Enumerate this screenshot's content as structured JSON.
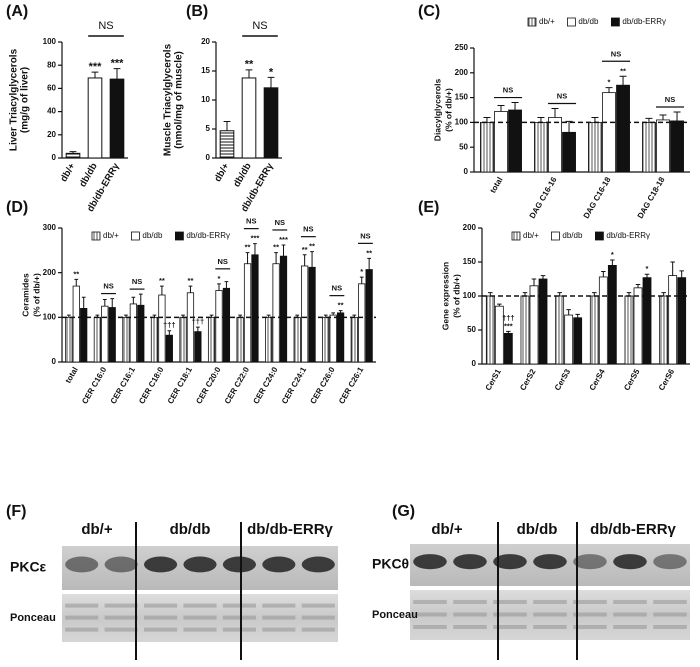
{
  "chart_data": [
    {
      "type": "bar",
      "panel": "(A)",
      "y_label": [
        "Liver Triacylglycerols",
        "(mg/g of liver)"
      ],
      "categories": [
        "db/+",
        "db/db",
        "db/db-ERRγ"
      ],
      "values": [
        4,
        69,
        68
      ],
      "errors": [
        1.5,
        5,
        9
      ],
      "annotations": [
        null,
        "***",
        "***"
      ],
      "bar_fills": [
        "hstripe",
        "white",
        "black"
      ],
      "comparison_label": "NS",
      "ylim": [
        0,
        100
      ],
      "yticks": [
        0,
        20,
        40,
        60,
        80,
        100
      ]
    },
    {
      "type": "bar",
      "panel": "(B)",
      "y_label": [
        "Muscle Triacylglycerols",
        "(nmol/mg of muscle)"
      ],
      "categories": [
        "db/+",
        "db/db",
        "db/db-ERRγ"
      ],
      "values": [
        4.7,
        13.8,
        12.1
      ],
      "errors": [
        1.6,
        1.4,
        1.8
      ],
      "annotations": [
        null,
        "**",
        "*"
      ],
      "bar_fills": [
        "hstripe",
        "white",
        "black"
      ],
      "comparison_label": "NS",
      "ylim": [
        0,
        20
      ],
      "yticks": [
        0,
        5,
        10,
        15,
        20
      ]
    },
    {
      "type": "grouped_bar",
      "panel": "(C)",
      "y_label": [
        "Diacylglycerols",
        "(% of db/+)"
      ],
      "categories": [
        "total",
        "DAG C16-16",
        "DAG C16-18",
        "DAG C18-18"
      ],
      "series": [
        {
          "name": "db/+",
          "fill": "vstripe",
          "values": [
            100,
            100,
            100,
            100
          ],
          "errors": [
            10,
            10,
            10,
            8
          ],
          "annotations": [
            null,
            null,
            null,
            null
          ]
        },
        {
          "name": "db/db",
          "fill": "white",
          "values": [
            122,
            110,
            160,
            105
          ],
          "errors": [
            12,
            18,
            10,
            10
          ],
          "annotations": [
            null,
            null,
            "*",
            null
          ]
        },
        {
          "name": "db/db-ERRγ",
          "fill": "black",
          "values": [
            125,
            80,
            175,
            103
          ],
          "errors": [
            15,
            22,
            18,
            18
          ],
          "annotations": [
            null,
            null,
            "**",
            null
          ]
        }
      ],
      "comparisons": [
        "NS",
        "NS",
        "NS",
        "NS"
      ],
      "reference_line": 100,
      "ylim": [
        0,
        250
      ],
      "yticks": [
        0,
        50,
        100,
        150,
        200,
        250
      ],
      "legend": "top"
    },
    {
      "type": "grouped_bar",
      "panel": "(D)",
      "y_label": [
        "Ceramides",
        "(% of db/+)"
      ],
      "categories": [
        "total",
        "CER C16:0",
        "CER C16:1",
        "CER C18:0",
        "CER C18:1",
        "CER C20:0",
        "CER C22:0",
        "CER C24:0",
        "CER C24:1",
        "CER C26:0",
        "CER C26:1"
      ],
      "series": [
        {
          "name": "db/+",
          "fill": "vstripe",
          "values": [
            100,
            100,
            100,
            100,
            100,
            100,
            100,
            100,
            100,
            100,
            100
          ],
          "errors": [
            5,
            5,
            5,
            5,
            5,
            5,
            5,
            5,
            5,
            5,
            5
          ],
          "annotations": [
            null,
            null,
            null,
            null,
            null,
            null,
            null,
            null,
            null,
            null,
            null
          ]
        },
        {
          "name": "db/db",
          "fill": "white",
          "values": [
            170,
            125,
            130,
            150,
            155,
            160,
            220,
            220,
            215,
            105,
            175
          ],
          "errors": [
            15,
            15,
            15,
            20,
            15,
            15,
            25,
            25,
            25,
            5,
            15
          ],
          "annotations": [
            "**",
            null,
            null,
            "**",
            "**",
            "*",
            "**",
            "**",
            "**",
            null,
            "*"
          ]
        },
        {
          "name": "db/db-ERRγ",
          "fill": "black",
          "values": [
            120,
            122,
            127,
            60,
            68,
            165,
            240,
            237,
            212,
            110,
            207
          ],
          "errors": [
            25,
            20,
            25,
            10,
            10,
            15,
            25,
            25,
            35,
            5,
            25
          ],
          "annotations": [
            null,
            null,
            null,
            "†††",
            "†††",
            null,
            "***",
            "***",
            "**",
            "**",
            "**"
          ]
        }
      ],
      "comparisons": [
        null,
        "NS",
        "NS",
        null,
        null,
        "NS",
        "NS",
        "NS",
        "NS",
        "NS",
        "NS"
      ],
      "reference_line": 100,
      "ylim": [
        0,
        300
      ],
      "yticks": [
        0,
        100,
        200,
        300
      ],
      "legend": "inside-top"
    },
    {
      "type": "grouped_bar",
      "panel": "(E)",
      "y_label": [
        "Gene expression",
        "(% of db/+)"
      ],
      "categories": [
        "CerS1",
        "CerS2",
        "CerS3",
        "CerS4",
        "CerS5",
        "CerS6"
      ],
      "series": [
        {
          "name": "db/+",
          "fill": "vstripe",
          "values": [
            100,
            100,
            100,
            100,
            100,
            100
          ],
          "errors": [
            5,
            5,
            5,
            5,
            5,
            5
          ],
          "annotations": [
            null,
            null,
            null,
            null,
            null,
            null
          ]
        },
        {
          "name": "db/db",
          "fill": "white",
          "values": [
            85,
            115,
            72,
            128,
            112,
            130
          ],
          "errors": [
            3,
            10,
            8,
            8,
            5,
            20
          ],
          "annotations": [
            null,
            null,
            null,
            null,
            null,
            null
          ]
        },
        {
          "name": "db/db-ERRγ",
          "fill": "black",
          "values": [
            45,
            125,
            68,
            145,
            127,
            127
          ],
          "errors": [
            3,
            5,
            5,
            8,
            5,
            10
          ],
          "annotations": [
            [
              "***",
              "†††"
            ],
            null,
            null,
            "*",
            "*",
            null
          ]
        }
      ],
      "comparisons": [
        null,
        null,
        null,
        null,
        null,
        null
      ],
      "reference_line": 100,
      "ylim": [
        0,
        200
      ],
      "yticks": [
        0,
        50,
        100,
        150,
        200
      ],
      "legend": "inside-top"
    }
  ],
  "blots": [
    {
      "panel": "(F)",
      "groups": [
        "db/+",
        "db/db",
        "db/db-ERRγ"
      ],
      "rows": [
        "PKCε",
        "Ponceau"
      ]
    },
    {
      "panel": "(G)",
      "groups": [
        "db/+",
        "db/db",
        "db/db-ERRγ"
      ],
      "rows": [
        "PKCθ",
        "Ponceau"
      ]
    }
  ]
}
